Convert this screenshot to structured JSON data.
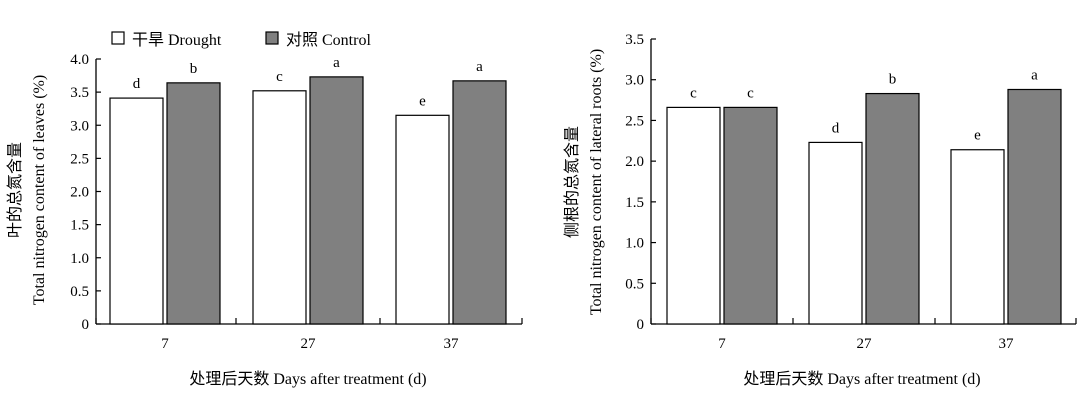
{
  "legend": {
    "drought": "干旱 Drought",
    "control": "对照 Control"
  },
  "colors": {
    "drought": "#ffffff",
    "control": "#808080",
    "stroke": "#000000"
  },
  "chart_data": [
    {
      "type": "bar",
      "ylabel_cn": "叶的总氮含量",
      "ylabel_en": "Total nitrogen content of leaves (%)",
      "xlabel": "处理后天数 Days after treatment (d)",
      "categories": [
        "7",
        "27",
        "37"
      ],
      "ylim": [
        0,
        4.0
      ],
      "yticks": [
        "0",
        "0.5",
        "1.0",
        "1.5",
        "2.0",
        "2.5",
        "3.0",
        "3.5",
        "4.0"
      ],
      "series": [
        {
          "name": "干旱 Drought",
          "values": [
            3.41,
            3.52,
            3.15
          ],
          "letters": [
            "d",
            "c",
            "e"
          ]
        },
        {
          "name": "对照 Control",
          "values": [
            3.64,
            3.73,
            3.67
          ],
          "letters": [
            "b",
            "a",
            "a"
          ]
        }
      ]
    },
    {
      "type": "bar",
      "ylabel_cn": "侧根的总氮含量",
      "ylabel_en": "Total nitrogen content of lateral roots (%)",
      "xlabel": "处理后天数 Days after treatment (d)",
      "categories": [
        "7",
        "27",
        "37"
      ],
      "ylim": [
        0,
        3.5
      ],
      "yticks": [
        "0",
        "0.5",
        "1.0",
        "1.5",
        "2.0",
        "2.5",
        "3.0",
        "3.5"
      ],
      "series": [
        {
          "name": "干旱 Drought",
          "values": [
            2.66,
            2.23,
            2.14
          ],
          "letters": [
            "c",
            "d",
            "e"
          ]
        },
        {
          "name": "对照 Control",
          "values": [
            2.66,
            2.83,
            2.88
          ],
          "letters": [
            "c",
            "b",
            "a"
          ]
        }
      ]
    }
  ]
}
